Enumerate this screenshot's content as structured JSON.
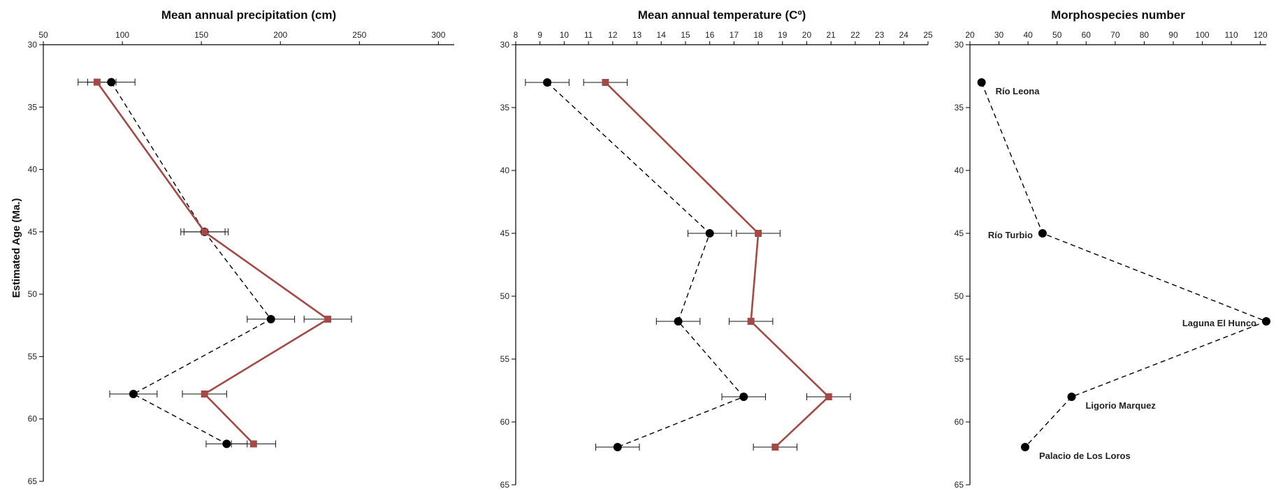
{
  "ylabel": "Estimated Age (Ma.)",
  "colors": {
    "seriesA": "#000000",
    "seriesB": "#a34a47",
    "axis": "#000000"
  },
  "chart_data": [
    {
      "type": "line",
      "title": "Mean annual precipitation (cm)",
      "xlim": [
        50,
        310
      ],
      "ylim": [
        30,
        65
      ],
      "x_axis_position": "top",
      "y_inverted": true,
      "xticks": [
        50,
        100,
        150,
        200,
        250,
        300
      ],
      "yticks": [
        30,
        35,
        40,
        45,
        50,
        55,
        60,
        65
      ],
      "series": [
        {
          "style": "dashed-black-circle",
          "points": [
            {
              "x": 93,
              "y": 33,
              "xerr": 15
            },
            {
              "x": 152,
              "y": 45,
              "xerr": 13
            },
            {
              "x": 194,
              "y": 52,
              "xerr": 15
            },
            {
              "x": 107,
              "y": 58,
              "xerr": 15
            },
            {
              "x": 166,
              "y": 62,
              "xerr": 13
            }
          ]
        },
        {
          "style": "solid-red-square",
          "points": [
            {
              "x": 84,
              "y": 33,
              "xerr": 12
            },
            {
              "x": 152,
              "y": 45,
              "xerr": 15
            },
            {
              "x": 230,
              "y": 52,
              "xerr": 15
            },
            {
              "x": 152,
              "y": 58,
              "xerr": 14
            },
            {
              "x": 183,
              "y": 62,
              "xerr": 14
            }
          ]
        }
      ]
    },
    {
      "type": "line",
      "title": "Mean annual temperature (Cº)",
      "xlim": [
        8,
        25
      ],
      "ylim": [
        30,
        65
      ],
      "x_axis_position": "top",
      "y_inverted": true,
      "xticks": [
        8,
        9,
        10,
        11,
        12,
        13,
        14,
        15,
        16,
        17,
        18,
        19,
        20,
        21,
        22,
        23,
        24,
        25
      ],
      "yticks": [
        30,
        35,
        40,
        45,
        50,
        55,
        60,
        65
      ],
      "series": [
        {
          "style": "dashed-black-circle",
          "points": [
            {
              "x": 9.3,
              "y": 33,
              "xerr": 0.9
            },
            {
              "x": 16.0,
              "y": 45,
              "xerr": 0.9
            },
            {
              "x": 14.7,
              "y": 52,
              "xerr": 0.9
            },
            {
              "x": 17.4,
              "y": 58,
              "xerr": 0.9
            },
            {
              "x": 12.2,
              "y": 62,
              "xerr": 0.9
            }
          ]
        },
        {
          "style": "solid-red-square",
          "points": [
            {
              "x": 11.7,
              "y": 33,
              "xerr": 0.9
            },
            {
              "x": 18.0,
              "y": 45,
              "xerr": 0.9
            },
            {
              "x": 17.7,
              "y": 52,
              "xerr": 0.9
            },
            {
              "x": 20.9,
              "y": 58,
              "xerr": 0.9
            },
            {
              "x": 18.7,
              "y": 62,
              "xerr": 0.9
            }
          ]
        }
      ]
    },
    {
      "type": "line",
      "title": "Morphospecies number",
      "xlim": [
        20,
        122
      ],
      "ylim": [
        30,
        65
      ],
      "x_axis_position": "top",
      "y_inverted": true,
      "xticks": [
        20,
        30,
        40,
        50,
        60,
        70,
        80,
        90,
        100,
        110,
        120
      ],
      "yticks": [
        30,
        35,
        40,
        45,
        50,
        55,
        60,
        65
      ],
      "series": [
        {
          "style": "dashed-black-circle",
          "points": [
            {
              "x": 24,
              "y": 33,
              "label": "Río Leona",
              "label_side": "right"
            },
            {
              "x": 45,
              "y": 45,
              "label": "Río Turbio",
              "label_side": "left"
            },
            {
              "x": 122,
              "y": 52,
              "label": "Laguna El Hunco",
              "label_side": "left"
            },
            {
              "x": 55,
              "y": 58,
              "label": "Ligorio Marquez",
              "label_side": "right"
            },
            {
              "x": 39,
              "y": 62,
              "label": "Palacio de Los Loros",
              "label_side": "right"
            }
          ]
        }
      ]
    }
  ]
}
